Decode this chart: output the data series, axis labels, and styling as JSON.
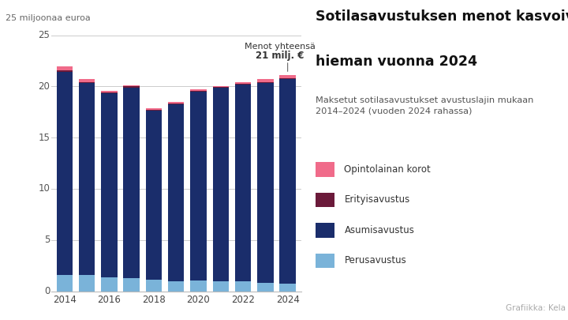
{
  "years": [
    2014,
    2015,
    2016,
    2017,
    2018,
    2019,
    2020,
    2021,
    2022,
    2023,
    2024
  ],
  "perusavustus": [
    1.55,
    1.55,
    1.35,
    1.25,
    1.1,
    1.0,
    1.05,
    1.0,
    0.95,
    0.85,
    0.75
  ],
  "asumisavustus": [
    19.9,
    18.8,
    17.95,
    18.65,
    16.55,
    17.25,
    18.45,
    18.85,
    19.2,
    19.45,
    19.95
  ],
  "erityisavustus": [
    0.12,
    0.1,
    0.1,
    0.1,
    0.1,
    0.1,
    0.1,
    0.1,
    0.1,
    0.1,
    0.1
  ],
  "opintolainan_korot": [
    0.35,
    0.25,
    0.2,
    0.1,
    0.15,
    0.1,
    0.1,
    0.1,
    0.2,
    0.3,
    0.3
  ],
  "color_perusavustus": "#7ab3d9",
  "color_asumisavustus": "#1a2d6b",
  "color_erityisavustus": "#6b1a3a",
  "color_opintolainan_korot": "#f06b8a",
  "title_line1": "Sotilasavustuksen menot kasvoivat",
  "title_line2": "hieman vuonna 2024",
  "subtitle": "Maksetut sotilasavustukset avustuslajin mukaan\n2014–2024 (vuoden 2024 rahassa)",
  "ylabel": "25 miljoonaa euroa",
  "annotation_line1": "Menot yhteensä",
  "annotation_line2": "21 milj. €",
  "source_text": "Grafiikka: Kela",
  "legend_labels": [
    "Opintolainan korot",
    "Erityisavustus",
    "Asumisavustus",
    "Perusavustus"
  ],
  "ylim": [
    0,
    25
  ],
  "yticks": [
    0,
    5,
    10,
    15,
    20,
    25
  ],
  "bg_color": "#ffffff"
}
